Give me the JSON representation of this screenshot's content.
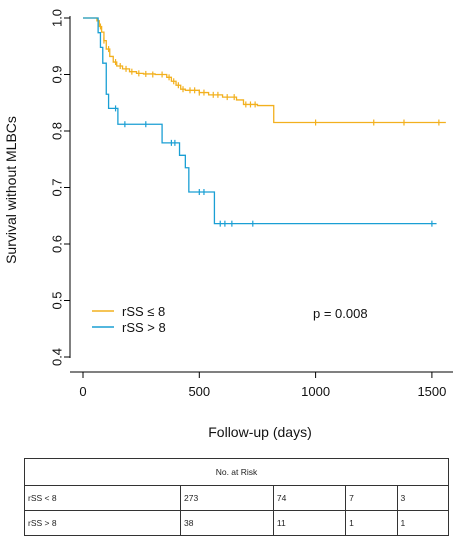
{
  "chart_data": {
    "type": "line",
    "xlabel": "Follow-up (days)",
    "ylabel": "Survival without MLBCs",
    "xlim": [
      0,
      1560
    ],
    "ylim": [
      0.4,
      1.0
    ],
    "x_ticks": [
      0,
      500,
      1000,
      1500
    ],
    "y_ticks": [
      0.4,
      0.5,
      0.6,
      0.7,
      0.8,
      0.9,
      1.0
    ],
    "grid": false,
    "legend_position": "bottom-left",
    "annotation": "p = 0.008",
    "series": [
      {
        "name": "rSS ≤ 8",
        "color": "#f2b01e",
        "steps": [
          [
            0,
            1.0
          ],
          [
            60,
            0.995
          ],
          [
            70,
            0.985
          ],
          [
            80,
            0.975
          ],
          [
            90,
            0.96
          ],
          [
            100,
            0.945
          ],
          [
            115,
            0.932
          ],
          [
            130,
            0.922
          ],
          [
            145,
            0.915
          ],
          [
            170,
            0.91
          ],
          [
            200,
            0.905
          ],
          [
            230,
            0.902
          ],
          [
            260,
            0.901
          ],
          [
            310,
            0.9
          ],
          [
            360,
            0.895
          ],
          [
            380,
            0.888
          ],
          [
            400,
            0.881
          ],
          [
            420,
            0.874
          ],
          [
            440,
            0.872
          ],
          [
            500,
            0.868
          ],
          [
            540,
            0.864
          ],
          [
            600,
            0.86
          ],
          [
            660,
            0.855
          ],
          [
            690,
            0.847
          ],
          [
            750,
            0.845
          ],
          [
            820,
            0.815
          ],
          [
            1560,
            0.815
          ]
        ],
        "censored": [
          [
            75,
            0.985
          ],
          [
            90,
            0.96
          ],
          [
            110,
            0.945
          ],
          [
            140,
            0.922
          ],
          [
            160,
            0.915
          ],
          [
            185,
            0.91
          ],
          [
            210,
            0.905
          ],
          [
            240,
            0.902
          ],
          [
            270,
            0.901
          ],
          [
            300,
            0.9
          ],
          [
            340,
            0.9
          ],
          [
            370,
            0.895
          ],
          [
            390,
            0.888
          ],
          [
            410,
            0.881
          ],
          [
            430,
            0.874
          ],
          [
            460,
            0.872
          ],
          [
            480,
            0.872
          ],
          [
            500,
            0.868
          ],
          [
            520,
            0.868
          ],
          [
            560,
            0.864
          ],
          [
            580,
            0.864
          ],
          [
            620,
            0.86
          ],
          [
            650,
            0.86
          ],
          [
            700,
            0.847
          ],
          [
            720,
            0.847
          ],
          [
            740,
            0.847
          ],
          [
            1000,
            0.815
          ],
          [
            1250,
            0.815
          ],
          [
            1380,
            0.815
          ],
          [
            1530,
            0.815
          ]
        ]
      },
      {
        "name": "rSS > 8",
        "color": "#1a9fd4",
        "steps": [
          [
            0,
            1.0
          ],
          [
            65,
            0.974
          ],
          [
            75,
            0.948
          ],
          [
            85,
            0.92
          ],
          [
            100,
            0.865
          ],
          [
            110,
            0.84
          ],
          [
            150,
            0.812
          ],
          [
            340,
            0.779
          ],
          [
            415,
            0.757
          ],
          [
            440,
            0.735
          ],
          [
            455,
            0.692
          ],
          [
            565,
            0.636
          ],
          [
            1520,
            0.636
          ]
        ],
        "censored": [
          [
            140,
            0.84
          ],
          [
            180,
            0.812
          ],
          [
            270,
            0.812
          ],
          [
            380,
            0.779
          ],
          [
            395,
            0.779
          ],
          [
            500,
            0.692
          ],
          [
            520,
            0.692
          ],
          [
            590,
            0.636
          ],
          [
            610,
            0.636
          ],
          [
            640,
            0.636
          ],
          [
            730,
            0.636
          ],
          [
            1500,
            0.636
          ]
        ]
      }
    ]
  },
  "risk_table": {
    "title": "No. at Risk",
    "rows": [
      {
        "label": "rSS < 8",
        "values": [
          "273",
          "74",
          "7",
          "3"
        ]
      },
      {
        "label": "rSS > 8",
        "values": [
          "38",
          "11",
          "1",
          "1"
        ]
      }
    ]
  }
}
